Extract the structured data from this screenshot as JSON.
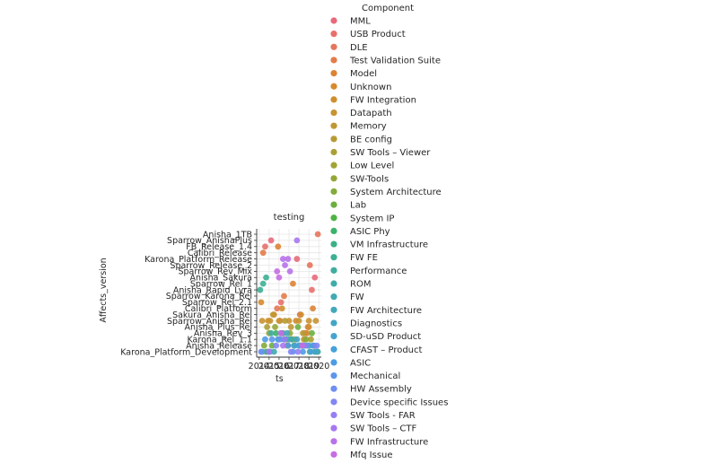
{
  "chart_data": {
    "type": "scatter",
    "title": "testing",
    "xlabel": "ts",
    "ylabel": "Affects_version",
    "grid": true,
    "legend_title": "Component",
    "legend_placement": "right",
    "x_tick_labels": [
      "2014",
      "2015",
      "2016",
      "2017",
      "2018",
      "2019",
      "2020"
    ],
    "y_tick_labels": [
      "Anisha_1TB",
      "Sparrow_AnishaPlus",
      "FB_Release_1.4",
      "Calibri_Release",
      "Karona_Platform_Release",
      "Sparrow_Release_2",
      "Sparrow_Rev_Mix",
      "Anisha_Sakura",
      "Sparrow_Rel_1",
      "Anisha_Rapid_Lyra",
      "Sparrow_Karona_Rel",
      "Sparrow_Rel_2.1",
      "Calibri_Platform",
      "Sakura_Anisha_Rel",
      "Sparrow_Anisha_Rel",
      "Anisha_Plus_Rel",
      "Anisha_Rev_3",
      "Karona_Rel_1.1",
      "Anisha_Release",
      "Karona_Platform_Development"
    ],
    "series": [
      {
        "name": "MML",
        "color": "#e8697b",
        "x": [
          2015.2,
          2017.8,
          2019.6,
          2018.1,
          2016.9
        ],
        "y": [
          1,
          4,
          7,
          13,
          18
        ]
      },
      {
        "name": "USB Product",
        "color": "#e8706c",
        "x": [
          2014.6,
          2019.3,
          2016.2,
          2018.6
        ],
        "y": [
          2,
          9,
          11,
          16
        ]
      },
      {
        "name": "DLE",
        "color": "#e6765b",
        "x": [
          2019.9,
          2019.1,
          2015.8,
          2017.3
        ],
        "y": [
          0,
          5,
          12,
          17
        ]
      },
      {
        "name": "Test Validation Suite",
        "color": "#e27c4b",
        "x": [
          2014.4,
          2016.5,
          2018.9
        ],
        "y": [
          3,
          10,
          15
        ]
      },
      {
        "name": "Model",
        "color": "#dc8335",
        "x": [
          2015.9,
          2017.4,
          2019.4,
          2016.1
        ],
        "y": [
          2,
          8,
          12,
          14
        ]
      },
      {
        "name": "Unknown",
        "color": "#d68a2b",
        "x": [
          2014.2,
          2015.5,
          2017.7,
          2018.8,
          2016.8
        ],
        "y": [
          11,
          13,
          14,
          16,
          18
        ]
      },
      {
        "name": "FW Integration",
        "color": "#cf8f2e",
        "x": [
          2016.3,
          2018.2,
          2014.9,
          2019.0
        ],
        "y": [
          12,
          13,
          14,
          15
        ]
      },
      {
        "name": "Datapath",
        "color": "#c89331",
        "x": [
          2014.3,
          2015.1,
          2016.0,
          2017.0,
          2018.0,
          2019.0,
          2019.7
        ],
        "y": [
          14,
          14,
          14,
          14,
          14,
          14,
          14
        ]
      },
      {
        "name": "Memory",
        "color": "#c09734",
        "x": [
          2015.4,
          2017.2,
          2018.5
        ],
        "y": [
          13,
          15,
          17
        ]
      },
      {
        "name": "BE config",
        "color": "#b69b34",
        "x": [
          2016.6,
          2018.4,
          2019.5
        ],
        "y": [
          14,
          16,
          18
        ]
      },
      {
        "name": "SW Tools – Viewer",
        "color": "#aca034",
        "x": [
          2014.8,
          2016.4,
          2019.2
        ],
        "y": [
          15,
          16,
          17
        ]
      },
      {
        "name": "Low Level",
        "color": "#a1a335",
        "x": [
          2015.0,
          2017.6,
          2018.3
        ],
        "y": [
          16,
          17,
          18
        ]
      },
      {
        "name": "SW-Tools",
        "color": "#93a737",
        "x": [
          2015.6,
          2017.1,
          2019.8
        ],
        "y": [
          15,
          16,
          19
        ]
      },
      {
        "name": "System Architecture",
        "color": "#83ab3a",
        "x": [
          2016.2,
          2018.7,
          2014.5
        ],
        "y": [
          16,
          17,
          18
        ]
      },
      {
        "name": "Lab",
        "color": "#6daf3f",
        "x": [
          2017.9,
          2019.3,
          2015.3
        ],
        "y": [
          15,
          16,
          18
        ]
      },
      {
        "name": "System IP",
        "color": "#4fb245",
        "x": [
          2016.7,
          2018.1,
          2014.7
        ],
        "y": [
          17,
          18,
          19
        ]
      },
      {
        "name": "ASIC Phy",
        "color": "#3cb26a",
        "x": [
          2015.7,
          2017.5,
          2019.1
        ],
        "y": [
          16,
          18,
          19
        ]
      },
      {
        "name": "VM Infrastructure",
        "color": "#3cb083",
        "x": [
          2016.0,
          2018.3,
          2019.6
        ],
        "y": [
          17,
          18,
          19
        ]
      },
      {
        "name": "FW FE",
        "color": "#3daf93",
        "x": [
          2014.1,
          2014.4,
          2014.7
        ],
        "y": [
          9,
          8,
          7
        ]
      },
      {
        "name": "Performance",
        "color": "#3fad9f",
        "x": [
          2015.2,
          2017.3,
          2018.9,
          2019.9
        ],
        "y": [
          16,
          17,
          18,
          19
        ]
      },
      {
        "name": "ROM",
        "color": "#40aca9",
        "x": [
          2016.5,
          2018.6,
          2014.9
        ],
        "y": [
          17,
          18,
          19
        ]
      },
      {
        "name": "FW",
        "color": "#41aab2",
        "x": [
          2017.0,
          2019.4,
          2015.5
        ],
        "y": [
          17,
          18,
          19
        ]
      },
      {
        "name": "FW Architecture",
        "color": "#42a8bb",
        "x": [
          2016.8,
          2018.2,
          2015.1
        ],
        "y": [
          16,
          18,
          19
        ]
      },
      {
        "name": "Diagnostics",
        "color": "#43a6c4",
        "x": [
          2017.8,
          2019.0,
          2014.3
        ],
        "y": [
          17,
          18,
          19
        ]
      },
      {
        "name": "SD-uSD Product",
        "color": "#44a4cf",
        "x": [
          2015.9,
          2018.0,
          2019.7
        ],
        "y": [
          17,
          18,
          19
        ]
      },
      {
        "name": "CFAST – Product",
        "color": "#46a1da",
        "x": [
          2016.3,
          2017.6,
          2019.2
        ],
        "y": [
          16,
          18,
          19
        ]
      },
      {
        "name": "ASIC",
        "color": "#4c9ce6",
        "x": [
          2014.6,
          2016.9,
          2018.4
        ],
        "y": [
          17,
          18,
          19
        ]
      },
      {
        "name": "Mechanical",
        "color": "#5d96ec",
        "x": [
          2015.3,
          2017.4,
          2019.5
        ],
        "y": [
          17,
          19,
          18
        ]
      },
      {
        "name": "HW Assembly",
        "color": "#6f8ff1",
        "x": [
          2016.1,
          2018.8,
          2014.2
        ],
        "y": [
          17,
          18,
          19
        ]
      },
      {
        "name": "Device specific Issues",
        "color": "#8287f3",
        "x": [
          2015.7,
          2017.2,
          2019.8
        ],
        "y": [
          18,
          19,
          18
        ]
      },
      {
        "name": "SW Tools - FAR",
        "color": "#967ff3",
        "x": [
          2016.6,
          2018.5,
          2017.9
        ],
        "y": [
          17,
          18,
          19
        ]
      },
      {
        "name": "SW Tools – CTF",
        "color": "#a778f0",
        "x": [
          2017.8,
          2016.4,
          2015.0
        ],
        "y": [
          1,
          18,
          19
        ]
      },
      {
        "name": "FW Infrastructure",
        "color": "#b872ea",
        "x": [
          2016.4,
          2016.6,
          2016.9,
          2017.1
        ],
        "y": [
          4,
          5,
          4,
          6
        ]
      },
      {
        "name": "Mfq Issue",
        "color": "#c66de2",
        "x": [
          2015.8,
          2016.0,
          2016.2,
          2018.3
        ],
        "y": [
          6,
          7,
          16,
          18
        ]
      }
    ]
  }
}
